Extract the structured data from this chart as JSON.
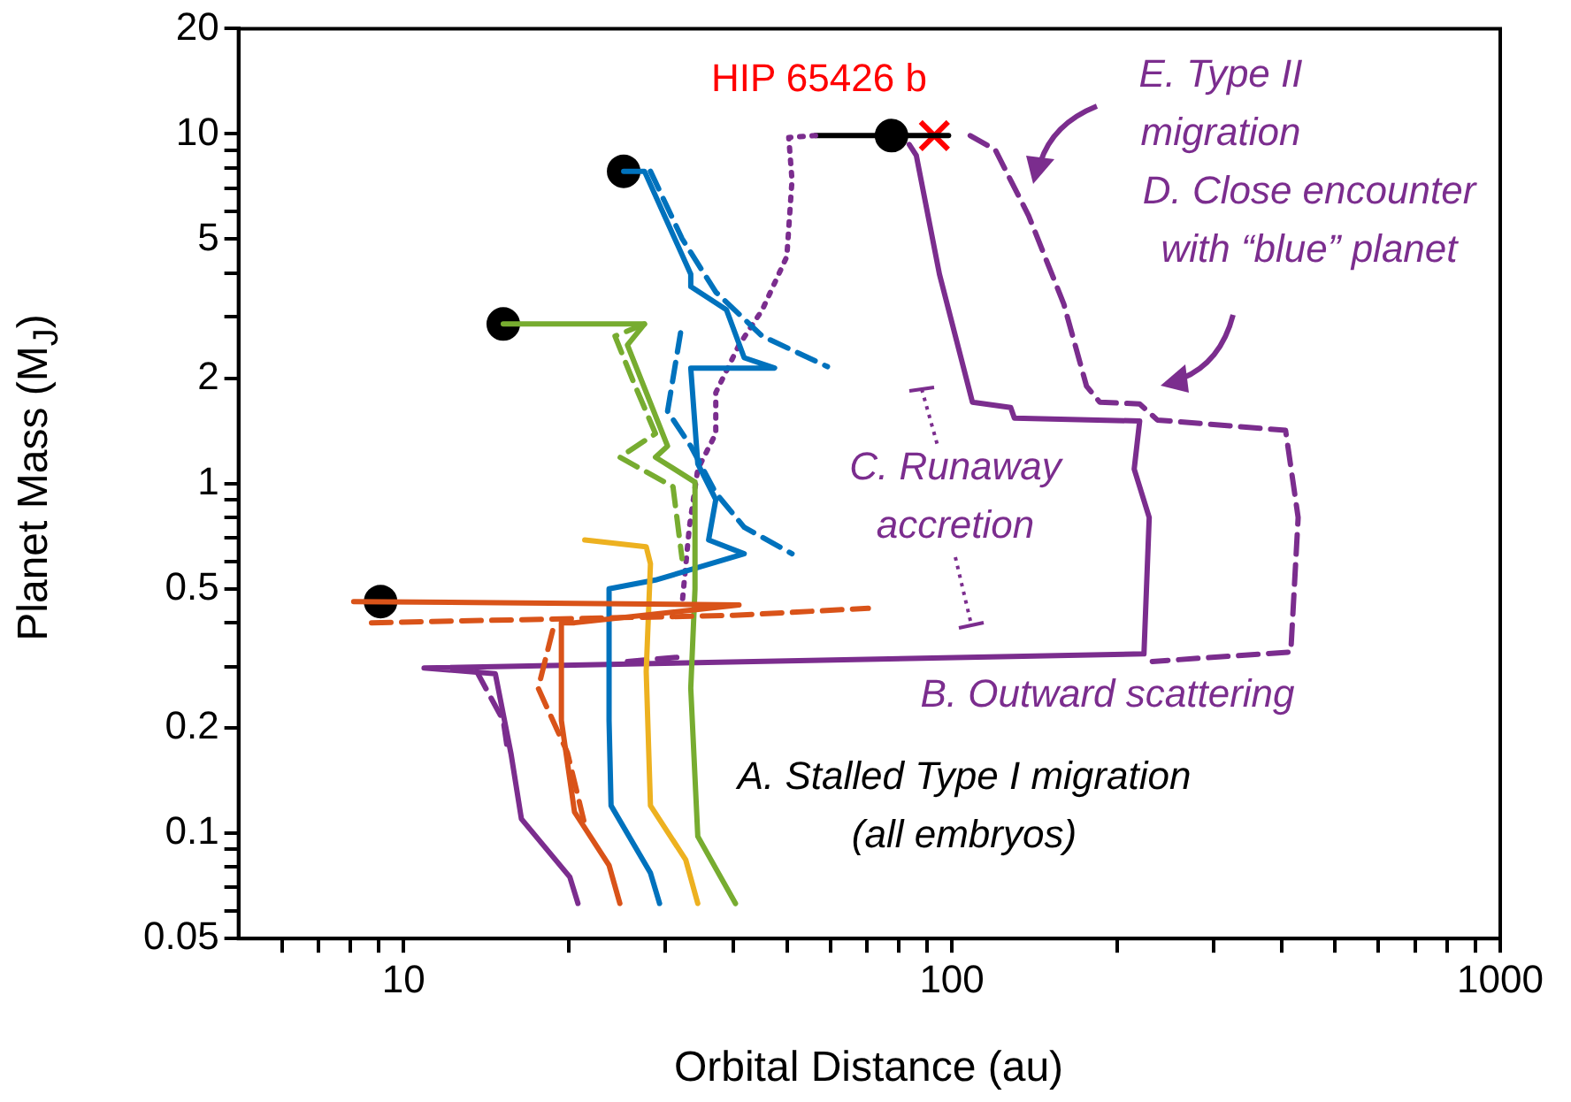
{
  "chart_data": {
    "type": "line",
    "xlabel": "Orbital Distance (au)",
    "ylabel": "Planet Mass (M$_{J}$)",
    "log": "xy",
    "xlim": [
      5,
      1000
    ],
    "ylim": [
      0.05,
      20
    ],
    "xticks": [
      {
        "value": 6,
        "label": null
      },
      {
        "value": 7,
        "label": null
      },
      {
        "value": 8,
        "label": null
      },
      {
        "value": 9,
        "label": null
      },
      10,
      {
        "value": 20,
        "label": null
      },
      {
        "value": 30,
        "label": null
      },
      {
        "value": 40,
        "label": null
      },
      {
        "value": 50,
        "label": null
      },
      {
        "value": 60,
        "label": null
      },
      {
        "value": 70,
        "label": null
      },
      {
        "value": 80,
        "label": null
      },
      {
        "value": 90,
        "label": null
      },
      100,
      {
        "value": 200,
        "label": null
      },
      {
        "value": 300,
        "label": null
      },
      {
        "value": 400,
        "label": null
      },
      {
        "value": 500,
        "label": null
      },
      {
        "value": 600,
        "label": null
      },
      {
        "value": 700,
        "label": null
      },
      {
        "value": 800,
        "label": null
      },
      {
        "value": 900,
        "label": null
      },
      1000
    ],
    "yticks": [
      0.05,
      {
        "value": 0.06,
        "label": null
      },
      {
        "value": 0.07,
        "label": null
      },
      {
        "value": 0.08,
        "label": null
      },
      {
        "value": 0.09,
        "label": null
      },
      0.1,
      0.2,
      {
        "value": 0.3,
        "label": null
      },
      {
        "value": 0.4,
        "label": null
      },
      0.5,
      {
        "value": 0.6,
        "label": null
      },
      {
        "value": 0.7,
        "label": null
      },
      {
        "value": 0.8,
        "label": null
      },
      {
        "value": 0.9,
        "label": null
      },
      1,
      2,
      {
        "value": 3,
        "label": null
      },
      {
        "value": 4,
        "label": null
      },
      5,
      {
        "value": 6,
        "label": null
      },
      {
        "value": 7,
        "label": null
      },
      {
        "value": 8,
        "label": null
      },
      {
        "value": 9,
        "label": null
      },
      10,
      20
    ],
    "legend": false,
    "series": [
      {
        "line_style": "solid",
        "color": "#d95319",
        "x": [
          8.11,
          40.9,
          20.5,
          19.4,
          19.4,
          20.5,
          23.7,
          24.8
        ],
        "values": [
          0.46,
          0.45,
          0.4,
          0.4,
          0.21,
          0.115,
          0.081,
          0.063
        ]
      },
      {
        "line_style": "dashed",
        "color": "#d95319",
        "x": [
          8.74,
          40.0,
          70.4
        ],
        "values": [
          0.4,
          0.42,
          0.44
        ]
      },
      {
        "line_style": "dashed",
        "color": "#d95319",
        "x": [
          18.7,
          17.6,
          19.9,
          21.4
        ],
        "values": [
          0.38,
          0.26,
          0.17,
          0.106
        ]
      },
      {
        "line_style": "solid",
        "color": "#edb120",
        "x": [
          21.4,
          27.7,
          28.2,
          27.7,
          28.2,
          32.7,
          34.4
        ],
        "values": [
          0.69,
          0.66,
          0.59,
          0.29,
          0.12,
          0.084,
          0.063
        ]
      },
      {
        "line_style": "solid",
        "color": "#77ac30",
        "x": [
          15.2,
          27.5,
          25.6,
          30.3,
          28.8,
          34.0,
          34.0,
          33.4,
          34.4,
          40.3
        ],
        "values": [
          2.86,
          2.86,
          2.49,
          1.28,
          1.19,
          1.01,
          0.5,
          0.26,
          0.098,
          0.063
        ]
      },
      {
        "line_style": "dashed",
        "color": "#77ac30",
        "x": [
          27.5,
          24.3,
          26.2,
          28.8,
          24.8,
          31.0,
          32.2
        ],
        "values": [
          2.86,
          2.64,
          1.97,
          1.39,
          1.19,
          0.98,
          0.61
        ]
      },
      {
        "line_style": "solid",
        "color": "#0072bd",
        "x": [
          25.2,
          27.5,
          33.4,
          33.4,
          38.8,
          41.8,
          47.5,
          33.4,
          34.4,
          37.1,
          36.0,
          41.8,
          28.8,
          23.7,
          23.7,
          23.9,
          28.2,
          29.3
        ],
        "values": [
          7.82,
          7.82,
          3.97,
          3.66,
          3.14,
          2.29,
          2.14,
          2.14,
          1.14,
          0.9,
          0.69,
          0.63,
          0.53,
          0.5,
          0.21,
          0.12,
          0.077,
          0.063
        ]
      },
      {
        "line_style": "dashed",
        "color": "#0072bd",
        "x": [
          28.2,
          32.2,
          37.1,
          45.1,
          59.3
        ],
        "values": [
          7.82,
          5.02,
          3.53,
          2.64,
          2.16
        ]
      },
      {
        "line_style": "dashed",
        "color": "#0072bd",
        "x": [
          32.0,
          30.3,
          33.4,
          37.1,
          41.8,
          51.1
        ],
        "values": [
          2.7,
          1.61,
          1.28,
          0.94,
          0.75,
          0.63
        ]
      },
      {
        "line_style": "solid",
        "color": "#7b2d8e",
        "x": [
          20.8,
          20.1,
          16.4,
          15.7,
          14.7,
          10.9,
          224,
          229,
          215,
          220,
          130,
          128,
          109,
          94.9,
          86.1,
          83.6
        ],
        "values": [
          0.063,
          0.075,
          0.11,
          0.169,
          0.286,
          0.297,
          0.326,
          0.8,
          1.1,
          1.51,
          1.54,
          1.65,
          1.71,
          3.97,
          8.69,
          9.33
        ]
      },
      {
        "line_style": "dashed",
        "color": "#7b2d8e",
        "x": [
          108,
          120,
          138,
          160,
          176,
          186,
          220,
          237,
          406,
          428,
          415,
          232
        ],
        "values": [
          9.89,
          9.0,
          5.84,
          3.26,
          1.9,
          1.71,
          1.69,
          1.52,
          1.42,
          0.8,
          0.33,
          0.31
        ]
      },
      {
        "line_style": "dashed",
        "color": "#7b2d8e",
        "x": [
          13.6,
          15.2,
          15.5
        ],
        "values": [
          0.29,
          0.21,
          0.17
        ]
      },
      {
        "line_style": "dashed",
        "color": "#7b2d8e",
        "x": [
          25.6,
          32.7
        ],
        "values": [
          0.31,
          0.32
        ]
      },
      {
        "line_style": "dotted",
        "color": "#7b2d8e",
        "x": [
          56.4,
          50.4,
          51.1,
          50.0,
          45.1,
          40.9,
          37.1,
          37.1,
          34.4,
          33.2,
          32.2
        ],
        "values": [
          9.89,
          9.77,
          7.38,
          4.46,
          3.14,
          2.49,
          1.82,
          1.39,
          1.1,
          0.75,
          0.45
        ]
      },
      {
        "line_style": "solid",
        "color": "#000000",
        "x": [
          56.4,
          98.6
        ],
        "values": [
          9.89,
          9.89
        ]
      },
      {
        "type": "scatter",
        "marker": "circle",
        "color": "#000000",
        "x": [
          77.6,
          25.2,
          15.2,
          9.08
        ],
        "values": [
          9.89,
          7.82,
          2.86,
          0.46
        ]
      },
      {
        "type": "scatter",
        "marker": "cross",
        "color": "#ff0000",
        "x": [
          92.9
        ],
        "values": [
          9.89
        ]
      }
    ],
    "annotations": [
      "HIP 65426 b",
      "E. Type II\nmigration",
      "D. Close encounter\nwith “blue” planet",
      "C. Runaway\naccretion",
      "B. Outward scattering",
      "A. Stalled Type I migration\n(all embryos)"
    ]
  }
}
